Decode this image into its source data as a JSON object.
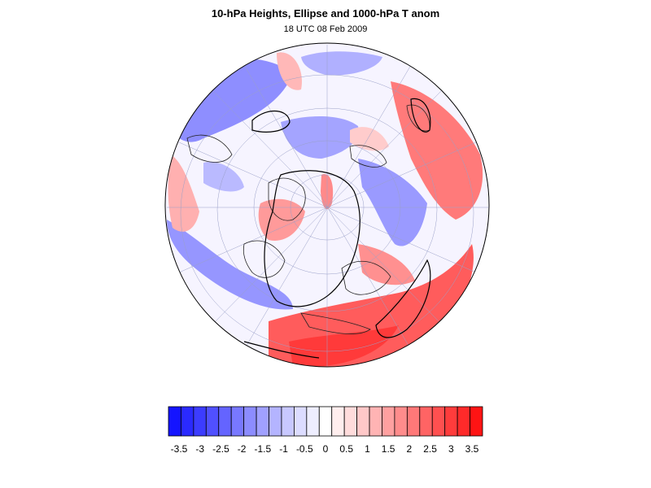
{
  "header": {
    "title": "10-hPa Heights, Ellipse and 1000-hPa T anom",
    "subtitle": "18 UTC 08 Feb 2009"
  },
  "colorbar": {
    "tick_labels": [
      "-3.5",
      "-3",
      "-2.5",
      "-2",
      "-1.5",
      "-1",
      "-0.5",
      "0",
      "0.5",
      "1",
      "1.5",
      "2",
      "2.5",
      "3",
      "3.5"
    ],
    "colors": [
      "#1414ff",
      "#2a2aff",
      "#3c3cff",
      "#5050ff",
      "#6464ff",
      "#7878ff",
      "#8c8cff",
      "#a0a0ff",
      "#b4b4ff",
      "#c8c8ff",
      "#dcdcff",
      "#eeeeff",
      "#ffffff",
      "#ffeeee",
      "#ffdcdc",
      "#ffc8c8",
      "#ffb4b4",
      "#ffa0a0",
      "#ff8c8c",
      "#ff7878",
      "#ff6464",
      "#ff5050",
      "#ff3c3c",
      "#ff2a2a",
      "#ff1414"
    ]
  },
  "map": {
    "projection": "orthographic",
    "fields": [
      "1000-hPa temperature anomaly",
      "10-hPa heights",
      "ellipse"
    ],
    "palette": {
      "warm": "#ff5a5a",
      "cold": "#6a6aff",
      "neutral": "#f4f4ff"
    }
  }
}
